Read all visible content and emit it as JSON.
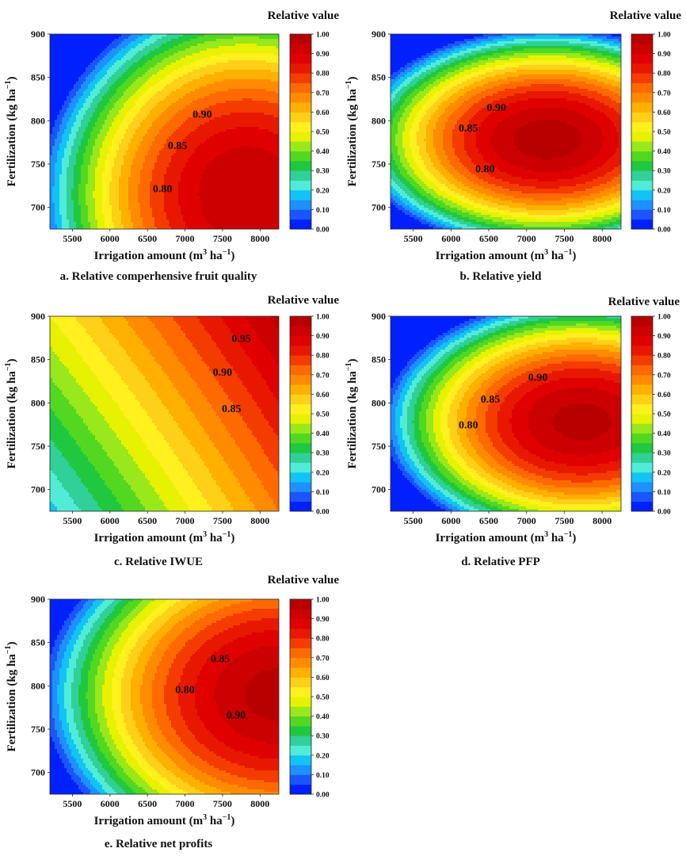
{
  "figure": {
    "colorbar_title": "Relative value",
    "xlabel_prefix": "Irrigation amount (m",
    "xlabel_sup": "3",
    "xlabel_mid": " ha",
    "xlabel_sup2": "−1",
    "xlabel_suffix": ")",
    "ylabel_prefix": "Fertilization (kg ha",
    "ylabel_sup": "−1",
    "ylabel_suffix": ")",
    "colorbar_ticks": [
      "0.00",
      "0.10",
      "0.20",
      "0.30",
      "0.40",
      "0.50",
      "0.60",
      "0.70",
      "0.80",
      "0.90",
      "1.00"
    ],
    "colorbar_colors": [
      "#0020ff",
      "#1a55ff",
      "#1e90ff",
      "#12c4f4",
      "#50ecd8",
      "#30d098",
      "#20c840",
      "#52d820",
      "#98e81c",
      "#e6f200",
      "#fff01e",
      "#ffd018",
      "#ffb000",
      "#ff8c00",
      "#ff6a00",
      "#f43c00",
      "#e81800",
      "#e00000",
      "#cc0000",
      "#b80000"
    ]
  },
  "chart_data": [
    {
      "type": "contour",
      "panel": "a",
      "title": "a. Relative comperhensive  fruit quality",
      "xlabel": "Irrigation amount (m3 ha−1)",
      "ylabel": "Fertilization (kg ha−1)",
      "xlim": [
        5200,
        8250
      ],
      "ylim": [
        675,
        900
      ],
      "xticks": [
        5500,
        6000,
        6500,
        7000,
        7500,
        8000
      ],
      "yticks": [
        700,
        750,
        800,
        850,
        900
      ],
      "zlim": [
        0,
        1
      ],
      "optimum": {
        "x": 7850,
        "y": 715
      },
      "contour_labels": [
        {
          "label": "0.80",
          "x": 6700,
          "y": 722
        },
        {
          "label": "0.85",
          "x": 6900,
          "y": 772
        },
        {
          "label": "0.90",
          "x": 7230,
          "y": 808
        }
      ]
    },
    {
      "type": "contour",
      "panel": "b",
      "title": "b. Relative yield",
      "xlabel": "Irrigation amount (m3 ha−1)",
      "ylabel": "Fertilization (kg ha−1)",
      "xlim": [
        5200,
        8250
      ],
      "ylim": [
        675,
        900
      ],
      "xticks": [
        5500,
        6000,
        6500,
        7000,
        7500,
        8000
      ],
      "yticks": [
        700,
        750,
        800,
        850,
        900
      ],
      "zlim": [
        0,
        1
      ],
      "optimum": {
        "x": 7300,
        "y": 778
      },
      "contour_labels": [
        {
          "label": "0.90",
          "x": 6600,
          "y": 816
        },
        {
          "label": "0.85",
          "x": 6230,
          "y": 792
        },
        {
          "label": "0.80",
          "x": 6450,
          "y": 745
        }
      ]
    },
    {
      "type": "contour",
      "panel": "c",
      "title": "c. Relative IWUE",
      "xlabel": "Irrigation amount (m3 ha−1)",
      "ylabel": "Fertilization (kg ha−1)",
      "xlim": [
        5200,
        8250
      ],
      "ylim": [
        675,
        900
      ],
      "xticks": [
        5500,
        6000,
        6500,
        7000,
        7500,
        8000
      ],
      "yticks": [
        700,
        750,
        800,
        850,
        900
      ],
      "zlim": [
        0,
        1
      ],
      "optimum": {
        "x": 8250,
        "y": 900
      },
      "contour_labels": [
        {
          "label": "0.95",
          "x": 7750,
          "y": 875
        },
        {
          "label": "0.90",
          "x": 7500,
          "y": 836
        },
        {
          "label": "0.85",
          "x": 7620,
          "y": 794
        }
      ]
    },
    {
      "type": "contour",
      "panel": "d",
      "title": "d. Relative PFP",
      "xlabel": "Irrigation amount (m3 ha−1)",
      "ylabel": "Fertilization (kg ha−1)",
      "xlim": [
        5200,
        8250
      ],
      "ylim": [
        675,
        900
      ],
      "xticks": [
        5500,
        6000,
        6500,
        7000,
        7500,
        8000
      ],
      "yticks": [
        700,
        750,
        800,
        850,
        900
      ],
      "zlim": [
        0,
        1
      ],
      "optimum": {
        "x": 7700,
        "y": 778
      },
      "contour_labels": [
        {
          "label": "0.90",
          "x": 7150,
          "y": 830
        },
        {
          "label": "0.85",
          "x": 6520,
          "y": 805
        },
        {
          "label": "0.80",
          "x": 6230,
          "y": 775
        }
      ]
    },
    {
      "type": "contour",
      "panel": "e",
      "title": "e. Relative net profits",
      "xlabel": "Irrigation amount (m3 ha−1)",
      "ylabel": "Fertilization (kg ha−1)",
      "xlim": [
        5200,
        8250
      ],
      "ylim": [
        675,
        900
      ],
      "xticks": [
        5500,
        6000,
        6500,
        7000,
        7500,
        8000
      ],
      "yticks": [
        700,
        750,
        800,
        850,
        900
      ],
      "zlim": [
        0,
        1
      ],
      "optimum": {
        "x": 8250,
        "y": 790
      },
      "contour_labels": [
        {
          "label": "0.85",
          "x": 7470,
          "y": 832
        },
        {
          "label": "0.80",
          "x": 7000,
          "y": 796
        },
        {
          "label": "0.90",
          "x": 7680,
          "y": 767
        }
      ]
    }
  ]
}
